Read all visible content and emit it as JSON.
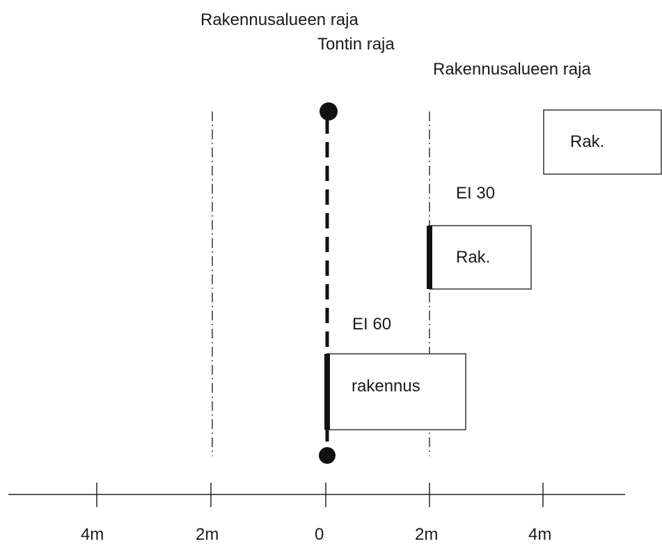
{
  "labels": {
    "building_area_limit_left": "Rakennusalueen raja",
    "plot_boundary": "Tontin raja",
    "building_area_limit_right": "Rakennusalueen raja",
    "fire_class_upper": "EI 30",
    "fire_class_lower": "EI 60"
  },
  "buildings": {
    "top_right": "Rak.",
    "middle": "Rak.",
    "bottom": "rakennus"
  },
  "axis": {
    "ticks": [
      "4m",
      "2m",
      "0",
      "2m",
      "4m"
    ]
  }
}
